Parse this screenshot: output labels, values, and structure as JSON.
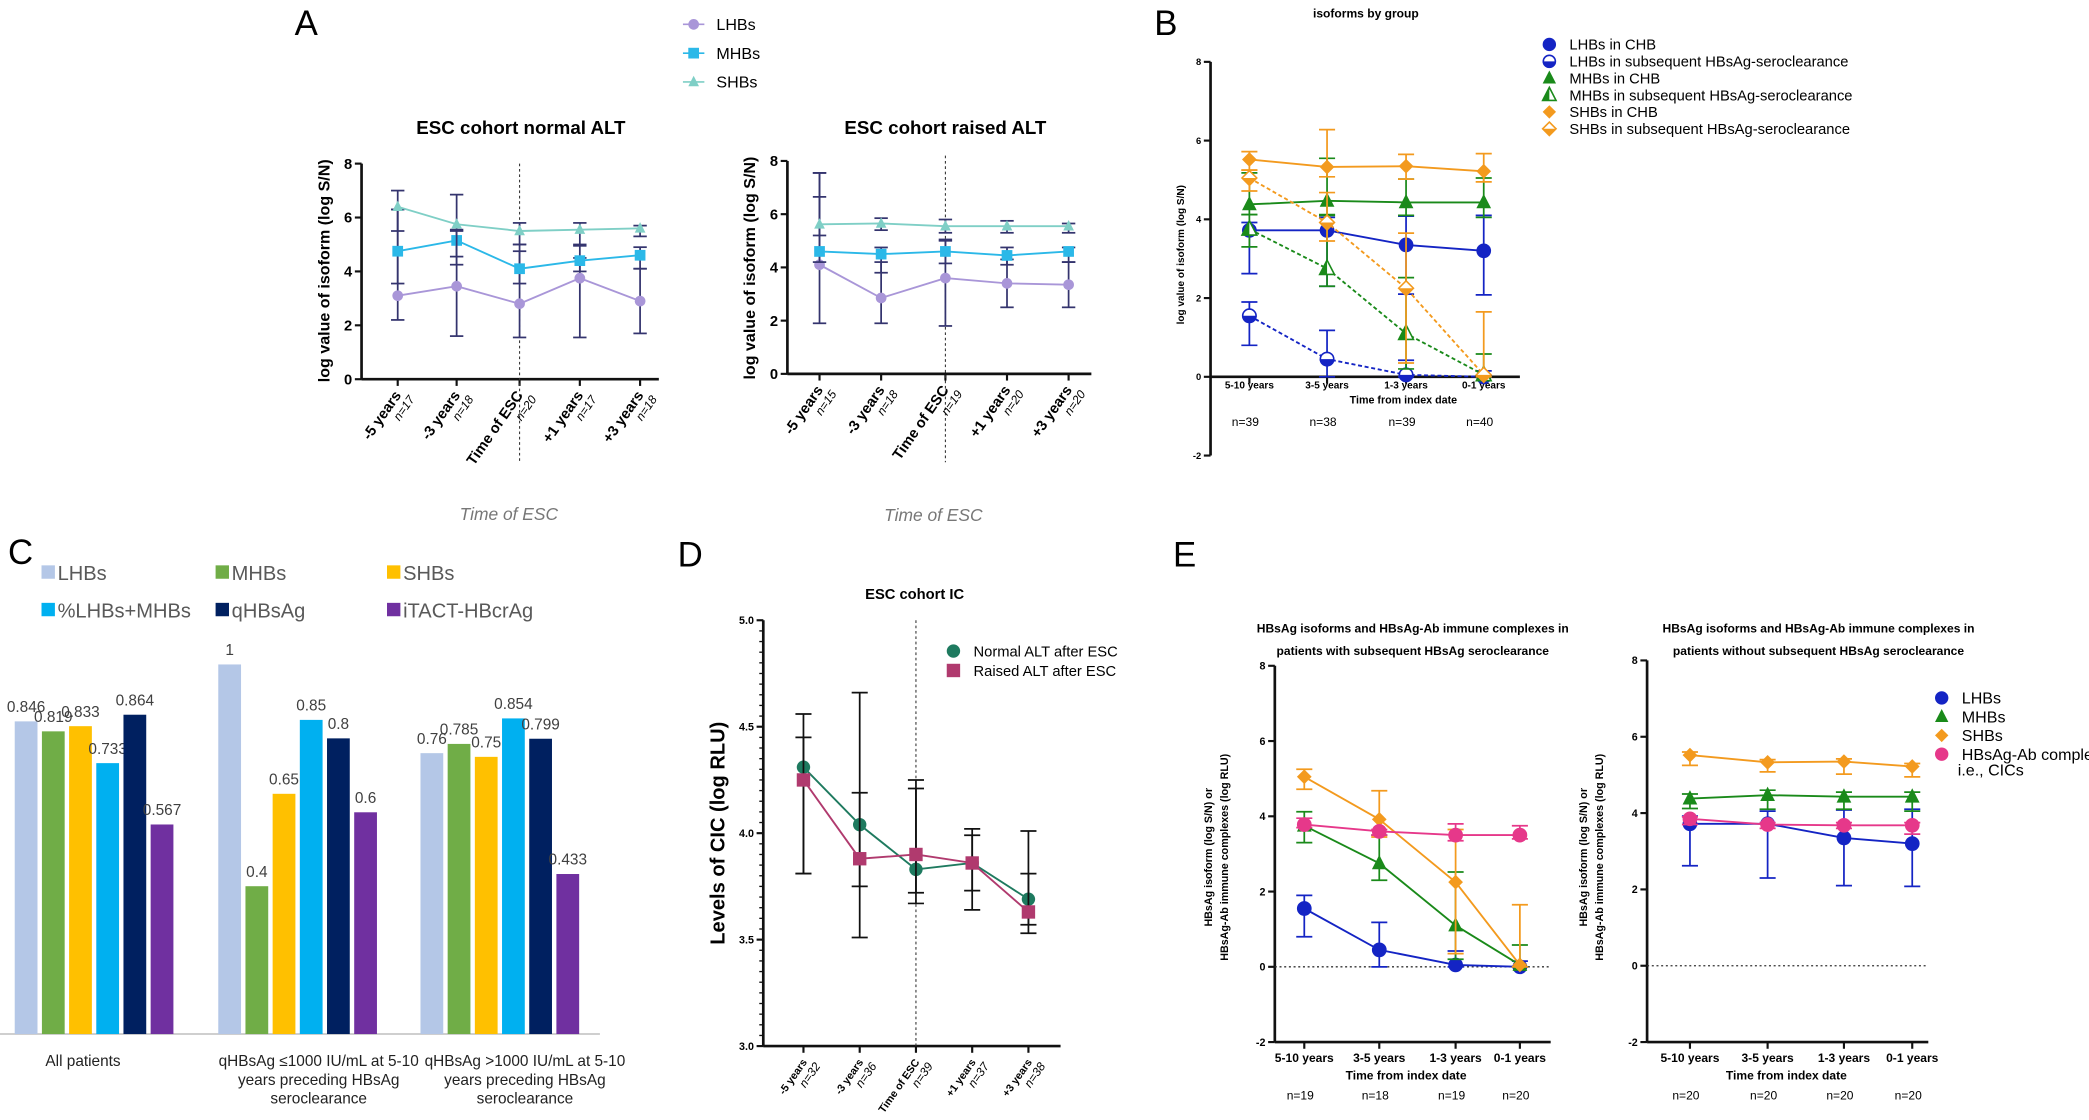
{
  "panel_labels": {
    "A": "A",
    "B": "B",
    "C": "C",
    "D": "D",
    "E": "E"
  },
  "chart_data": [
    {
      "type": "line",
      "title": [
        "ESC cohort normal ALT"
      ],
      "ylabel": [
        "log value of isoform (log S/N)"
      ],
      "xlabel": "Time of ESC",
      "categories": [
        "-5 years",
        "-3 years",
        "Time of ESC",
        "+1 years",
        "+3 years"
      ],
      "n": [
        "n=17",
        "n=18",
        "n=20",
        "n=17",
        "n=18"
      ],
      "ylim": [
        0,
        8
      ],
      "yticks": [
        "0",
        "2",
        "4",
        "6",
        "8"
      ],
      "legend_placement": "top",
      "series": [
        {
          "name": "LHBs",
          "color": "#a996d8",
          "marker": "circle",
          "values": [
            3.1,
            3.45,
            2.8,
            3.75,
            2.9
          ],
          "err_low": [
            2.2,
            1.6,
            1.55,
            1.55,
            1.7
          ],
          "err_high": [
            6.3,
            5.5,
            5.0,
            4.95,
            4.1
          ]
        },
        {
          "name": "MHBs",
          "color": "#2bb8e8",
          "marker": "square",
          "values": [
            4.75,
            5.15,
            4.1,
            4.4,
            4.6
          ],
          "err_low": [
            3.55,
            4.25,
            3.55,
            4.0,
            4.1
          ],
          "err_high": [
            6.3,
            5.55,
            4.75,
            4.5,
            4.9
          ]
        },
        {
          "name": "SHBs",
          "color": "#7fcfc6",
          "marker": "triangle",
          "values": [
            6.4,
            5.75,
            5.5,
            5.55,
            5.6
          ],
          "err_low": [
            5.5,
            4.55,
            5.0,
            5.0,
            5.3
          ],
          "err_high": [
            7.0,
            6.85,
            5.8,
            5.8,
            5.7
          ]
        }
      ]
    },
    {
      "type": "line",
      "title": [
        "ESC cohort raised ALT"
      ],
      "ylabel": [
        "log value of isoform (log S/N)"
      ],
      "xlabel": "Time of ESC",
      "categories": [
        "-5 years",
        "-3 years",
        "Time of ESC",
        "+1 years",
        "+3 years"
      ],
      "n": [
        "n=15",
        "n=18",
        "n=19",
        "n=20",
        "n=20"
      ],
      "ylim": [
        0,
        8
      ],
      "yticks": [
        "0",
        "2",
        "4",
        "6",
        "8"
      ],
      "series": [
        {
          "name": "LHBs",
          "color": "#a996d8",
          "marker": "circle",
          "values": [
            4.1,
            2.85,
            3.6,
            3.4,
            3.35
          ],
          "err_low": [
            1.9,
            1.9,
            1.8,
            2.5,
            2.5
          ],
          "err_high": [
            6.65,
            4.2,
            5.05,
            4.3,
            4.2
          ]
        },
        {
          "name": "MHBs",
          "color": "#2bb8e8",
          "marker": "square",
          "values": [
            4.6,
            4.5,
            4.6,
            4.45,
            4.6
          ],
          "err_low": [
            4.2,
            3.8,
            4.15,
            4.1,
            4.2
          ],
          "err_high": [
            7.55,
            4.75,
            5.0,
            4.75,
            4.75
          ]
        },
        {
          "name": "SHBs",
          "color": "#7fcfc6",
          "marker": "triangle",
          "values": [
            5.62,
            5.65,
            5.55,
            5.55,
            5.55
          ],
          "err_low": [
            5.2,
            5.4,
            5.3,
            5.3,
            5.3
          ],
          "err_high": [
            7.55,
            5.85,
            5.8,
            5.75,
            5.65
          ]
        }
      ]
    },
    {
      "type": "line",
      "title": [
        "isoforms by group"
      ],
      "ylabel": [
        "log value of isoform (log  S/N)"
      ],
      "xlabel": "Time from index date",
      "categories": [
        "5-10 years",
        "3-5 years",
        "1-3 years",
        "0-1 years"
      ],
      "n": [
        "n=39",
        "n=38",
        "n=39",
        "n=40"
      ],
      "ylim": [
        -2,
        8
      ],
      "yticks": [
        "-2",
        "0",
        "2",
        "4",
        "6",
        "8"
      ],
      "legend_placement": "right",
      "series": [
        {
          "name": "LHBs in CHB",
          "color": "#1424c4",
          "marker": "circle",
          "dashed": false,
          "values": [
            3.72,
            3.72,
            3.35,
            3.2
          ],
          "err_low": [
            2.62,
            2.3,
            2.1,
            2.08
          ],
          "err_high": [
            3.92,
            4.05,
            4.08,
            4.1
          ]
        },
        {
          "name": "LHBs in subsequent HBsAg-seroclearance",
          "color": "#1424c4",
          "marker": "halfcircle",
          "dashed": true,
          "values": [
            1.55,
            0.45,
            0.05,
            0.0
          ],
          "err_low": [
            0.8,
            0.0,
            0.0,
            0.0
          ],
          "err_high": [
            1.9,
            1.18,
            0.42,
            0.15
          ]
        },
        {
          "name": "MHBs in CHB",
          "color": "#1a8a1a",
          "marker": "triangle",
          "dashed": false,
          "values": [
            4.38,
            4.47,
            4.43,
            4.43
          ],
          "err_low": [
            4.12,
            4.1,
            4.1,
            4.05
          ],
          "err_high": [
            5.18,
            5.55,
            5.02,
            5.05
          ]
        },
        {
          "name": "MHBs in subsequent HBsAg-seroclearance",
          "color": "#1a8a1a",
          "marker": "halftriangle",
          "dashed": true,
          "values": [
            3.75,
            2.75,
            1.1,
            0.05
          ],
          "err_low": [
            3.3,
            2.3,
            0.2,
            0.0
          ],
          "err_high": [
            4.12,
            4.12,
            2.52,
            0.58
          ]
        },
        {
          "name": "SHBs in CHB",
          "color": "#f39a1e",
          "marker": "diamond",
          "dashed": false,
          "values": [
            5.52,
            5.33,
            5.35,
            5.22
          ],
          "err_low": [
            5.25,
            5.08,
            5.02,
            4.95
          ],
          "err_high": [
            5.72,
            6.28,
            5.65,
            5.67
          ]
        },
        {
          "name": "SHBs in subsequent HBsAg-seroclearance",
          "color": "#f39a1e",
          "marker": "halfdiamond",
          "dashed": true,
          "values": [
            5.05,
            3.92,
            2.25,
            0.05
          ],
          "err_low": [
            4.72,
            3.45,
            0.35,
            0.0
          ],
          "err_high": [
            5.25,
            4.68,
            3.65,
            1.65
          ]
        }
      ]
    },
    {
      "type": "bar",
      "categories": [
        [
          "All patients"
        ],
        [
          "qHBsAg ≤1000 IU/mL at 5-10",
          "years preceding HBsAg",
          "seroclearance"
        ],
        [
          "qHBsAg >1000 IU/mL at 5-10",
          "years preceding HBsAg",
          "seroclearance"
        ]
      ],
      "ylim": [
        0,
        1
      ],
      "legend_placement": "top",
      "series": [
        {
          "name": "LHBs",
          "color": "#b4c7e7",
          "values": [
            0.846,
            1,
            0.76
          ]
        },
        {
          "name": "MHBs",
          "color": "#70ad47",
          "values": [
            0.819,
            0.4,
            0.785
          ]
        },
        {
          "name": "SHBs",
          "color": "#ffc000",
          "values": [
            0.833,
            0.65,
            0.75
          ]
        },
        {
          "name": "%LHBs+MHBs",
          "color": "#00b0f0",
          "values": [
            0.733,
            0.85,
            0.854
          ]
        },
        {
          "name": "qHBsAg",
          "color": "#002060",
          "values": [
            0.864,
            0.8,
            0.799
          ]
        },
        {
          "name": "iTACT-HBcrAg",
          "color": "#7030a0",
          "values": [
            0.567,
            0.6,
            0.433
          ]
        }
      ]
    },
    {
      "type": "line",
      "title": [
        "ESC cohort IC"
      ],
      "ylabel": [
        "Levels of CIC (log RLU)"
      ],
      "categories": [
        "-5 years",
        "-3 years",
        "Time of ESC",
        "+1 years",
        "+3 years"
      ],
      "n": [
        "n=32",
        "n=36",
        "n=39",
        "n=37",
        "n=38"
      ],
      "ylim": [
        3.0,
        5.0
      ],
      "yticks": [
        "3.0",
        "3.5",
        "4.0",
        "4.5",
        "5.0"
      ],
      "legend_placement": "top-right",
      "series": [
        {
          "name": "Normal ALT after ESC",
          "color": "#1e7a5f",
          "marker": "circle",
          "values": [
            4.31,
            4.04,
            3.83,
            3.86,
            3.69
          ],
          "err_low": [
            3.81,
            3.75,
            3.72,
            3.64,
            3.57
          ],
          "err_high": [
            4.56,
            4.66,
            4.25,
            4.02,
            4.01
          ]
        },
        {
          "name": "Raised ALT after ESC",
          "color": "#b03a6e",
          "marker": "square",
          "values": [
            4.25,
            3.88,
            3.9,
            3.86,
            3.63
          ],
          "err_low": [
            3.81,
            3.51,
            3.67,
            3.73,
            3.53
          ],
          "err_high": [
            4.45,
            4.19,
            4.21,
            3.99,
            3.81
          ]
        }
      ]
    },
    {
      "type": "line",
      "title": [
        "HBsAg isoforms and HBsAg-Ab immune complexes in",
        "patients with subsequent HBsAg seroclearance"
      ],
      "ylabel": [
        "HBsAg isoform (log S/N) or",
        "HBsAg-Ab immune complexes (log RLU)"
      ],
      "xlabel": "Time from index date",
      "categories": [
        "5-10 years",
        "3-5 years",
        "1-3 years",
        "0-1 years"
      ],
      "n": [
        "n=19",
        "n=18",
        "n=19",
        "n=20"
      ],
      "ylim": [
        -2,
        8
      ],
      "yticks": [
        "-2",
        "0",
        "2",
        "4",
        "6",
        "8"
      ],
      "series": [
        {
          "name": "LHBs",
          "color": "#1424c4",
          "marker": "circle",
          "values": [
            1.55,
            0.45,
            0.05,
            0.0
          ],
          "err_low": [
            0.8,
            0.0,
            0.0,
            0.0
          ],
          "err_high": [
            1.9,
            1.18,
            0.42,
            0.15
          ]
        },
        {
          "name": "MHBs",
          "color": "#1a8a1a",
          "marker": "triangle",
          "values": [
            3.75,
            2.75,
            1.1,
            0.05
          ],
          "err_low": [
            3.3,
            2.3,
            0.2,
            0.0
          ],
          "err_high": [
            4.12,
            3.5,
            2.52,
            0.58
          ]
        },
        {
          "name": "SHBs",
          "color": "#f39a1e",
          "marker": "diamond",
          "values": [
            5.05,
            3.92,
            2.25,
            0.05
          ],
          "err_low": [
            4.72,
            3.45,
            0.35,
            0.0
          ],
          "err_high": [
            5.25,
            4.68,
            3.65,
            1.65
          ]
        },
        {
          "name": "HBsAg-Ab complex",
          "color": "#e6388a",
          "marker": "circle",
          "values": [
            3.78,
            3.6,
            3.5,
            3.5
          ],
          "err_low": [
            3.7,
            3.5,
            3.35,
            3.4
          ],
          "err_high": [
            3.95,
            3.65,
            3.8,
            3.75
          ]
        }
      ]
    },
    {
      "type": "line",
      "title": [
        "HBsAg isoforms and HBsAg-Ab immune complexes in",
        "patients without subsequent HBsAg seroclearance"
      ],
      "ylabel": [
        "HBsAg isoform (log S/N) or",
        "HBsAg-Ab immune complexes (log RLU)"
      ],
      "xlabel": "Time from index date",
      "categories": [
        "5-10 years",
        "3-5 years",
        "1-3 years",
        "0-1 years"
      ],
      "n": [
        "n=20",
        "n=20",
        "n=20",
        "n=20"
      ],
      "ylim": [
        -2,
        8
      ],
      "yticks": [
        "-2",
        "0",
        "2",
        "4",
        "6",
        "8"
      ],
      "legend_placement": "right",
      "legend_note": "i.e., CICs",
      "series": [
        {
          "name": "LHBs",
          "color": "#1424c4",
          "marker": "circle",
          "values": [
            3.72,
            3.72,
            3.35,
            3.2
          ],
          "err_low": [
            2.62,
            2.3,
            2.1,
            2.08
          ],
          "err_high": [
            3.92,
            4.05,
            4.08,
            4.1
          ]
        },
        {
          "name": "MHBs",
          "color": "#1a8a1a",
          "marker": "triangle",
          "values": [
            4.38,
            4.47,
            4.43,
            4.43
          ],
          "err_low": [
            4.12,
            4.1,
            4.1,
            4.05
          ],
          "err_high": [
            4.5,
            4.6,
            4.55,
            4.55
          ]
        },
        {
          "name": "SHBs",
          "color": "#f39a1e",
          "marker": "diamond",
          "values": [
            5.52,
            5.33,
            5.35,
            5.22
          ],
          "err_low": [
            5.25,
            5.08,
            5.02,
            4.95
          ],
          "err_high": [
            5.6,
            5.4,
            5.42,
            5.3
          ]
        },
        {
          "name": "HBsAg-Ab complex",
          "color": "#e6388a",
          "marker": "circle",
          "values": [
            3.85,
            3.7,
            3.68,
            3.68
          ],
          "err_low": [
            3.7,
            3.6,
            3.6,
            3.45
          ],
          "err_high": [
            3.9,
            3.75,
            3.75,
            3.75
          ]
        }
      ]
    }
  ]
}
